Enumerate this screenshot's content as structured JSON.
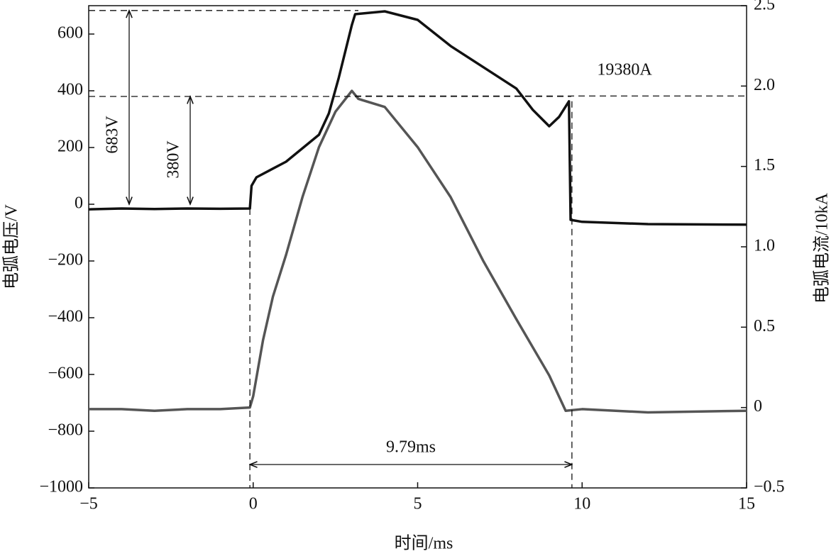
{
  "chart_data": {
    "type": "line",
    "xlabel": "时间/ms",
    "ylabel": "电弧电压/V",
    "y2label": "电弧电流/10kA",
    "xlim": [
      -5,
      15
    ],
    "xticks": [
      {
        "value": -5,
        "label": "−5"
      },
      0,
      5,
      10,
      15
    ],
    "ylim": [
      -1000,
      700
    ],
    "yticks": [
      {
        "value": -1000,
        "label": "−1000"
      },
      {
        "value": -800,
        "label": "−800"
      },
      {
        "value": -600,
        "label": "−600"
      },
      {
        "value": -400,
        "label": "−400"
      },
      {
        "value": -200,
        "label": "−200"
      },
      0,
      200,
      400,
      600
    ],
    "y2lim": [
      -0.5,
      2.5
    ],
    "y2ticks": [
      {
        "value": -0.5,
        "label": "−0.5"
      },
      0,
      0.5,
      {
        "value": 1,
        "label": "1.0"
      },
      1.5,
      {
        "value": 2,
        "label": "2.0"
      },
      2.5
    ],
    "series": [
      {
        "name": "电弧电压",
        "color": "#111111",
        "axis": "y",
        "x": [
          -5,
          -4,
          -3,
          -2,
          -1,
          -0.1,
          -0.05,
          0.1,
          1,
          2,
          2.3,
          2.6,
          3,
          3.1,
          4,
          5,
          6,
          7,
          8,
          8.5,
          9,
          9.3,
          9.6,
          9.65,
          10,
          12,
          15
        ],
        "values": [
          -18,
          -15,
          -17,
          -15,
          -16,
          -15,
          65,
          95,
          150,
          245,
          320,
          445,
          632,
          670,
          680,
          650,
          558,
          483,
          408,
          333,
          275,
          308,
          363,
          -55,
          -62,
          -70,
          -72
        ]
      },
      {
        "name": "电弧电流",
        "color": "#555555",
        "axis": "y2",
        "x": [
          -5,
          -4,
          -3,
          -2,
          -1,
          -0.1,
          0,
          0.3,
          0.6,
          1,
          1.5,
          2,
          2.5,
          3,
          3.2,
          4,
          5,
          6,
          7,
          8,
          9,
          9.5,
          10,
          12,
          15
        ],
        "values": [
          -0.01,
          -0.01,
          -0.02,
          -0.01,
          -0.01,
          0,
          0.07,
          0.42,
          0.69,
          0.95,
          1.31,
          1.62,
          1.84,
          1.97,
          1.92,
          1.87,
          1.62,
          1.31,
          0.91,
          0.55,
          0.2,
          -0.02,
          -0.01,
          -0.03,
          -0.02
        ]
      }
    ],
    "annotations": [
      {
        "text": "683V",
        "value": 683,
        "axis": "y"
      },
      {
        "text": "380V",
        "value": 380,
        "axis": "y"
      },
      {
        "text": "19380A",
        "value": 1.938,
        "axis": "y2"
      },
      {
        "text": "9.79ms",
        "x": [
          -0.1,
          9.69
        ]
      }
    ]
  }
}
